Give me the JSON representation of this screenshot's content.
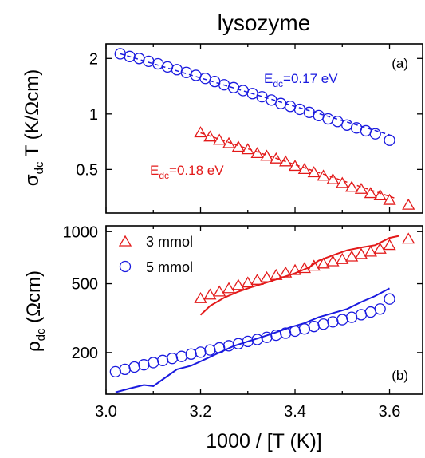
{
  "chart_data": [
    {
      "type": "scatter",
      "title": "lysozyme",
      "panel_label": "(a)",
      "ylabel": {
        "main": "σ",
        "sub": "dc",
        "rest": " T (K/Ωcm)"
      },
      "yscale": "log",
      "ylim": [
        0.29,
        2.4
      ],
      "xlim": [
        3.0,
        3.67
      ],
      "yticks": [
        {
          "value": 0.5,
          "label": "0.5"
        },
        {
          "value": 1,
          "label": "1"
        },
        {
          "value": 2,
          "label": "2"
        }
      ],
      "annotations": [
        {
          "main": "E",
          "sub": "dc",
          "rest": "=0.17 eV",
          "color": "#1a1adf"
        },
        {
          "main": "E",
          "sub": "dc",
          "rest": "=0.18 eV",
          "color": "#e31a1a"
        }
      ],
      "series": [
        {
          "marker": "circle",
          "color": "#1a1adf",
          "x": [
            3.03,
            3.05,
            3.07,
            3.09,
            3.11,
            3.13,
            3.15,
            3.17,
            3.19,
            3.21,
            3.23,
            3.25,
            3.27,
            3.29,
            3.31,
            3.33,
            3.35,
            3.37,
            3.39,
            3.41,
            3.43,
            3.45,
            3.47,
            3.49,
            3.51,
            3.53,
            3.55,
            3.57,
            3.6
          ],
          "y": [
            2.12,
            2.05,
            2.0,
            1.93,
            1.87,
            1.8,
            1.74,
            1.68,
            1.62,
            1.56,
            1.5,
            1.44,
            1.39,
            1.34,
            1.29,
            1.24,
            1.19,
            1.14,
            1.1,
            1.06,
            1.02,
            0.98,
            0.94,
            0.91,
            0.87,
            0.84,
            0.81,
            0.78,
            0.72
          ],
          "fit_x": [
            3.03,
            3.6
          ],
          "fit_y": [
            2.12,
            0.77
          ]
        },
        {
          "marker": "triangle",
          "color": "#e31a1a",
          "x": [
            3.2,
            3.22,
            3.24,
            3.26,
            3.28,
            3.3,
            3.32,
            3.34,
            3.36,
            3.38,
            3.4,
            3.42,
            3.44,
            3.46,
            3.48,
            3.5,
            3.52,
            3.54,
            3.56,
            3.58,
            3.6,
            3.64
          ],
          "y": [
            0.79,
            0.75,
            0.72,
            0.69,
            0.66,
            0.64,
            0.61,
            0.59,
            0.57,
            0.55,
            0.52,
            0.5,
            0.48,
            0.46,
            0.44,
            0.42,
            0.4,
            0.39,
            0.37,
            0.36,
            0.34,
            0.32
          ],
          "fit_x": [
            3.2,
            3.61
          ],
          "fit_y": [
            0.79,
            0.35
          ]
        }
      ]
    },
    {
      "type": "scatter",
      "panel_label": "(b)",
      "xlabel": "1000 / [T (K)]",
      "ylabel": {
        "main": "ρ",
        "sub": "dc",
        "rest": "  (Ωcm)"
      },
      "yscale": "log",
      "ylim": [
        115,
        1080
      ],
      "xlim": [
        3.0,
        3.67
      ],
      "xticks": [
        {
          "value": 3.0,
          "label": "3.0"
        },
        {
          "value": 3.2,
          "label": "3.2"
        },
        {
          "value": 3.4,
          "label": "3.4"
        },
        {
          "value": 3.6,
          "label": "3.6"
        }
      ],
      "yticks": [
        {
          "value": 200,
          "label": "200"
        },
        {
          "value": 500,
          "label": "500"
        },
        {
          "value": 1000,
          "label": "1000"
        }
      ],
      "legend": {
        "position": "top-left"
      },
      "series": [
        {
          "name": "3 mmol",
          "marker": "triangle",
          "color": "#e31a1a",
          "x": [
            3.2,
            3.22,
            3.24,
            3.26,
            3.28,
            3.3,
            3.32,
            3.34,
            3.36,
            3.38,
            3.4,
            3.42,
            3.44,
            3.46,
            3.48,
            3.5,
            3.52,
            3.54,
            3.56,
            3.58,
            3.6,
            3.64
          ],
          "y": [
            410,
            430,
            448,
            468,
            488,
            505,
            523,
            541,
            558,
            577,
            596,
            612,
            631,
            650,
            670,
            690,
            714,
            738,
            762,
            792,
            832,
            905
          ],
          "line_x": [
            3.2,
            3.22,
            3.25,
            3.28,
            3.31,
            3.34,
            3.37,
            3.4,
            3.43,
            3.45,
            3.48,
            3.51,
            3.54,
            3.57,
            3.6,
            3.62
          ],
          "line_y": [
            330,
            372,
            415,
            450,
            480,
            508,
            540,
            575,
            622,
            680,
            730,
            780,
            810,
            835,
            920,
            945
          ]
        },
        {
          "name": "5 mmol",
          "marker": "circle",
          "color": "#1a1adf",
          "x": [
            3.02,
            3.04,
            3.06,
            3.08,
            3.1,
            3.12,
            3.14,
            3.16,
            3.18,
            3.2,
            3.22,
            3.24,
            3.26,
            3.28,
            3.3,
            3.32,
            3.34,
            3.36,
            3.38,
            3.4,
            3.42,
            3.44,
            3.46,
            3.48,
            3.5,
            3.52,
            3.54,
            3.56,
            3.58,
            3.6
          ],
          "y": [
            155,
            160,
            165,
            170,
            175,
            180,
            185,
            190,
            196,
            201,
            207,
            213,
            219,
            225,
            232,
            238,
            245,
            252,
            259,
            266,
            274,
            283,
            292,
            301,
            310,
            320,
            331,
            343,
            357,
            408
          ]
        }
      ]
    }
  ]
}
